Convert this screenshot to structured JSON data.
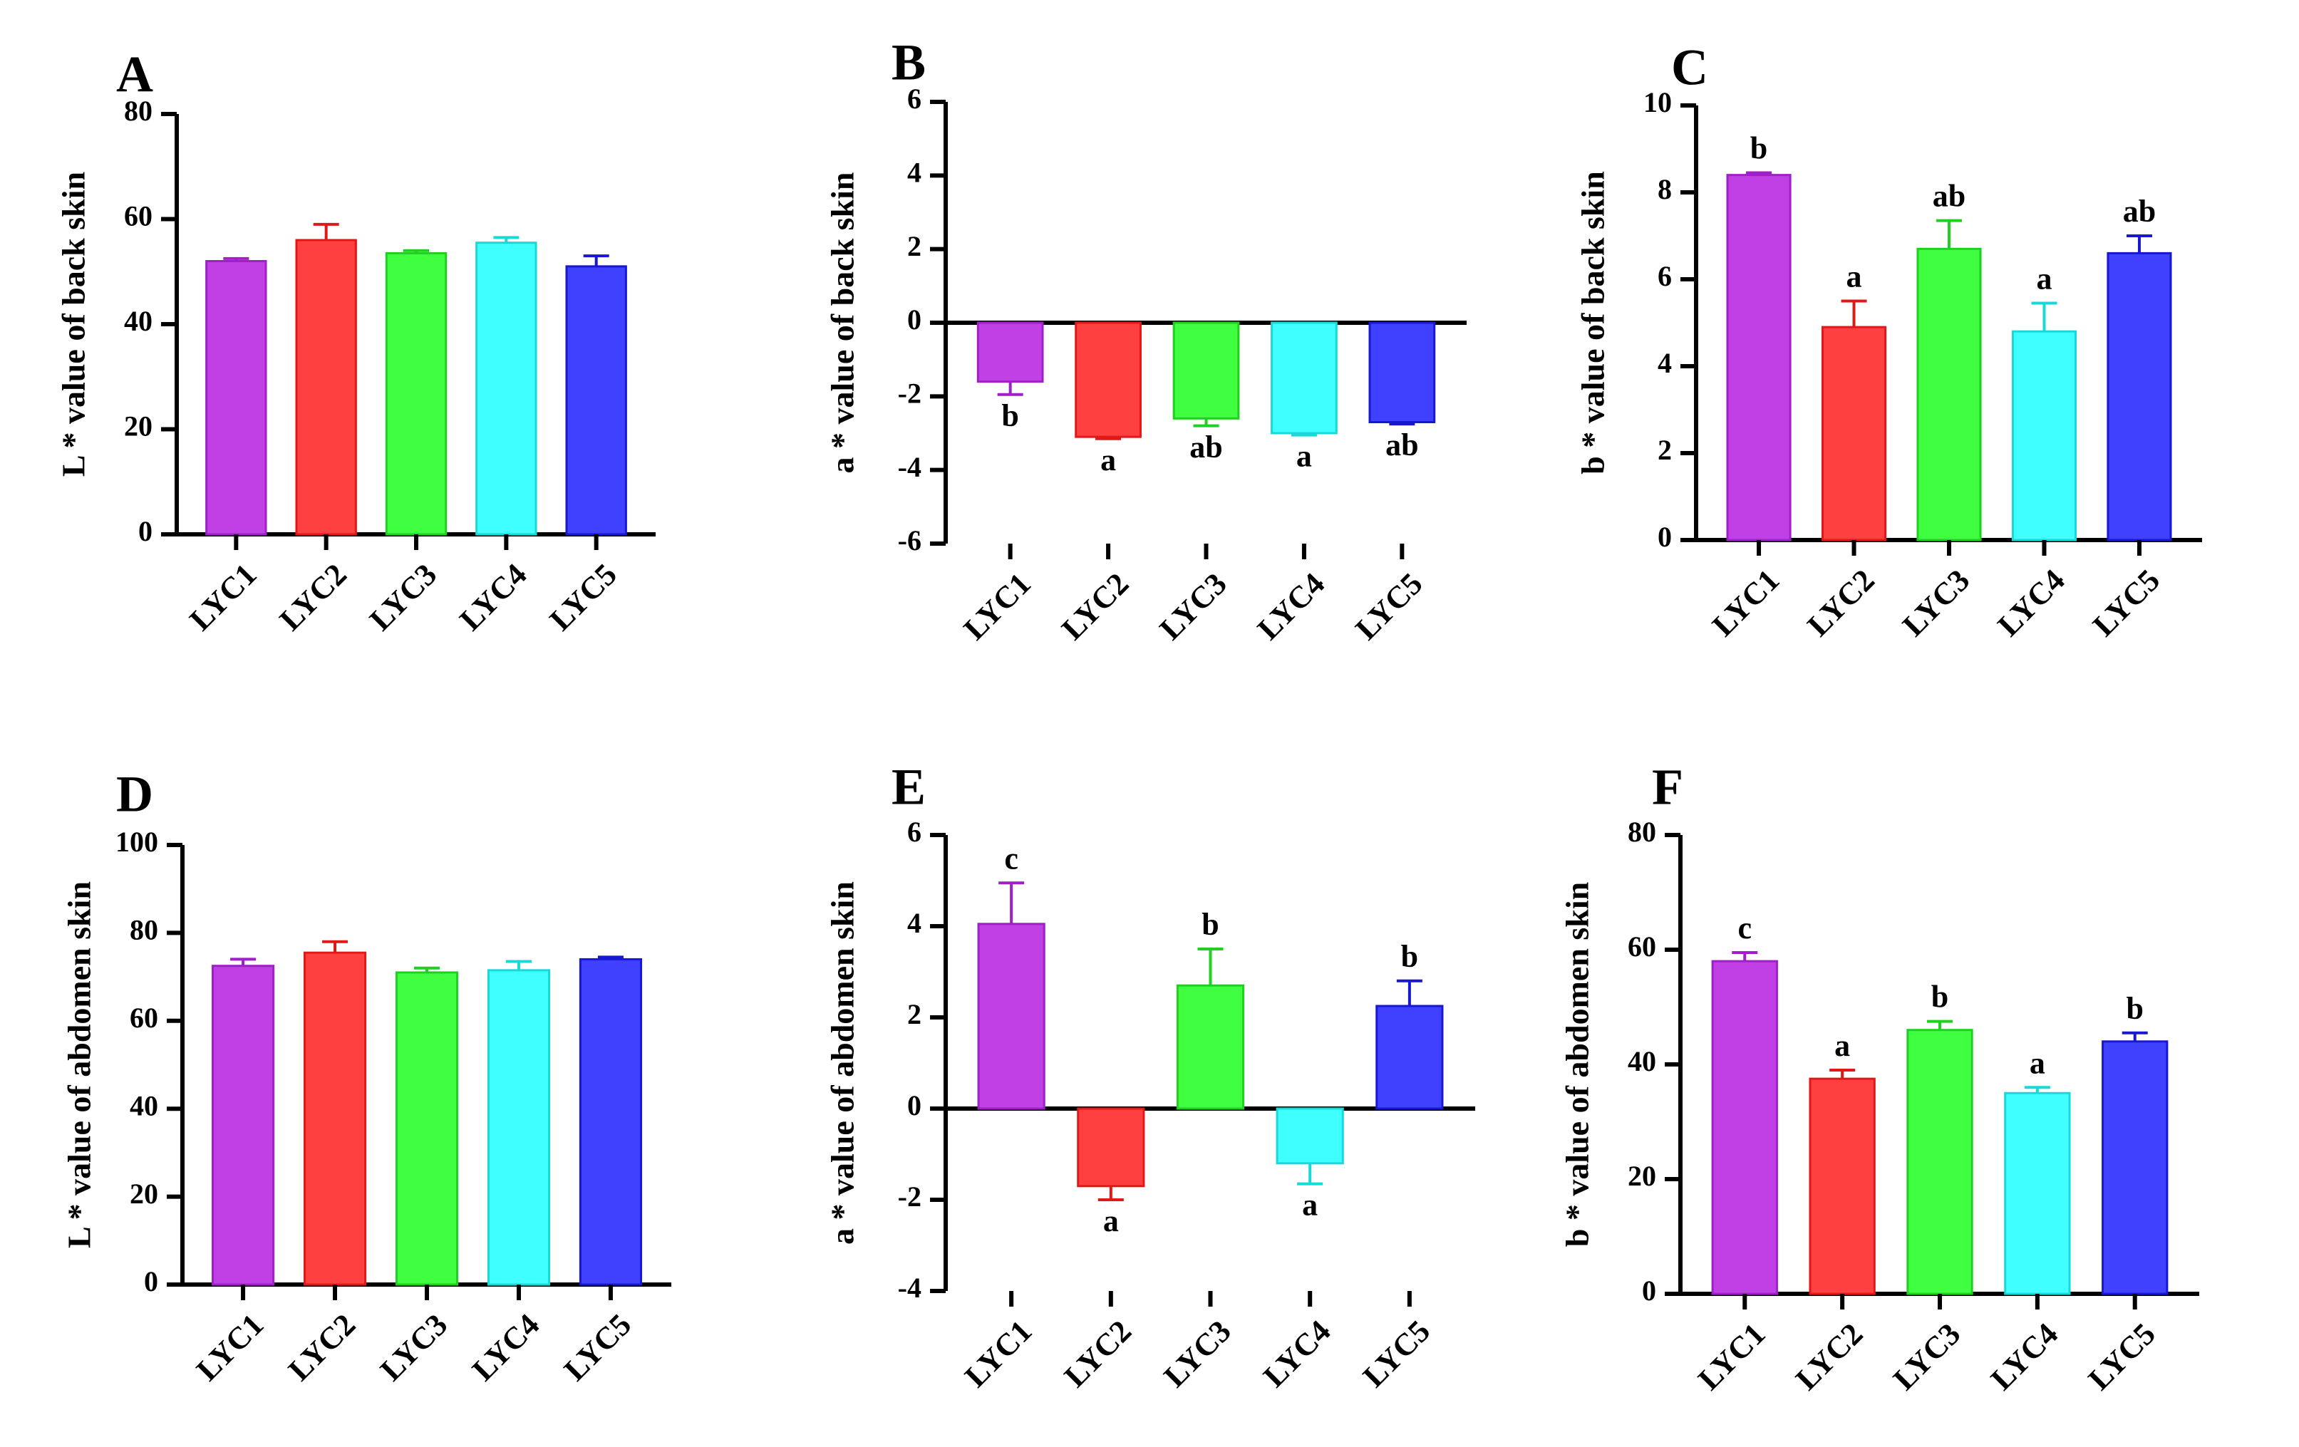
{
  "figure": {
    "colors": {
      "LYC1": "#c040e6",
      "LYC2": "#ff4040",
      "LYC3": "#40ff40",
      "LYC4": "#40ffff",
      "LYC5": "#4040ff"
    },
    "edge_colors": {
      "LYC1": "#a020c8",
      "LYC2": "#e01818",
      "LYC3": "#20d020",
      "LYC4": "#18d8d8",
      "LYC5": "#1818d0"
    }
  },
  "chart_data": [
    {
      "panel": "A",
      "type": "bar",
      "categories": [
        "LYC1",
        "LYC2",
        "LYC3",
        "LYC4",
        "LYC5"
      ],
      "values": [
        52,
        56,
        53.5,
        55.5,
        51
      ],
      "errors": [
        0.5,
        3,
        0.5,
        1,
        2
      ],
      "letters": [
        "",
        "",
        "",
        "",
        ""
      ],
      "ylabel": "L * value of back skin",
      "ylim": [
        0,
        80
      ],
      "yticks": [
        0,
        20,
        40,
        60,
        80
      ],
      "ytick_labels": [
        "0",
        "20",
        "40",
        "60",
        "80"
      ]
    },
    {
      "panel": "B",
      "type": "bar",
      "categories": [
        "LYC1",
        "LYC2",
        "LYC3",
        "LYC4",
        "LYC5"
      ],
      "values": [
        -1.6,
        -3.1,
        -2.6,
        -3.0,
        -2.7
      ],
      "errors": [
        0.35,
        0.05,
        0.2,
        0.05,
        0.05
      ],
      "letters": [
        "b",
        "a",
        "ab",
        "a",
        "ab"
      ],
      "ylabel": "a * value of back skin",
      "ylim": [
        -6,
        6
      ],
      "yticks": [
        -6,
        -4,
        -2,
        0,
        2,
        4,
        6
      ],
      "ytick_labels": [
        "-6",
        "-4",
        "-2",
        "0",
        "2",
        "4",
        "6"
      ]
    },
    {
      "panel": "C",
      "type": "bar",
      "categories": [
        "LYC1",
        "LYC2",
        "LYC3",
        "LYC4",
        "LYC5"
      ],
      "values": [
        8.4,
        4.9,
        6.7,
        4.8,
        6.6
      ],
      "errors": [
        0.05,
        0.6,
        0.65,
        0.65,
        0.4
      ],
      "letters": [
        "b",
        "a",
        "ab",
        "a",
        "ab"
      ],
      "ylabel": "b * value of back skin",
      "ylim": [
        0,
        10
      ],
      "yticks": [
        0,
        2,
        4,
        6,
        8,
        10
      ],
      "ytick_labels": [
        "0",
        "2",
        "4",
        "6",
        "8",
        "10"
      ]
    },
    {
      "panel": "D",
      "type": "bar",
      "categories": [
        "LYC1",
        "LYC2",
        "LYC3",
        "LYC4",
        "LYC5"
      ],
      "values": [
        72.5,
        75.5,
        71,
        71.5,
        74
      ],
      "errors": [
        1.5,
        2.5,
        1,
        2,
        0.5
      ],
      "letters": [
        "",
        "",
        "",
        "",
        ""
      ],
      "ylabel": "L * value of abdomen skin",
      "ylim": [
        0,
        100
      ],
      "yticks": [
        0,
        20,
        40,
        60,
        80,
        100
      ],
      "ytick_labels": [
        "0",
        "20",
        "40",
        "60",
        "80",
        "100"
      ]
    },
    {
      "panel": "E",
      "type": "bar",
      "categories": [
        "LYC1",
        "LYC2",
        "LYC3",
        "LYC4",
        "LYC5"
      ],
      "values": [
        4.05,
        -1.7,
        2.7,
        -1.2,
        2.25
      ],
      "errors": [
        0.9,
        0.3,
        0.8,
        0.45,
        0.55
      ],
      "letters": [
        "c",
        "a",
        "b",
        "a",
        "b"
      ],
      "ylabel": "a * value of abdomen skin",
      "ylim": [
        -4,
        6
      ],
      "yticks": [
        -4,
        -2,
        0,
        2,
        4,
        6
      ],
      "ytick_labels": [
        "-4",
        "-2",
        "0",
        "2",
        "4",
        "6"
      ]
    },
    {
      "panel": "F",
      "type": "bar",
      "categories": [
        "LYC1",
        "LYC2",
        "LYC3",
        "LYC4",
        "LYC5"
      ],
      "values": [
        58,
        37.5,
        46,
        35,
        44
      ],
      "errors": [
        1.5,
        1.5,
        1.5,
        1,
        1.5
      ],
      "letters": [
        "c",
        "a",
        "b",
        "a",
        "b"
      ],
      "ylabel": "b * value of abdomen skin",
      "ylim": [
        0,
        80
      ],
      "yticks": [
        0,
        20,
        40,
        60,
        80
      ],
      "ytick_labels": [
        "0",
        "20",
        "40",
        "60",
        "80"
      ]
    }
  ]
}
